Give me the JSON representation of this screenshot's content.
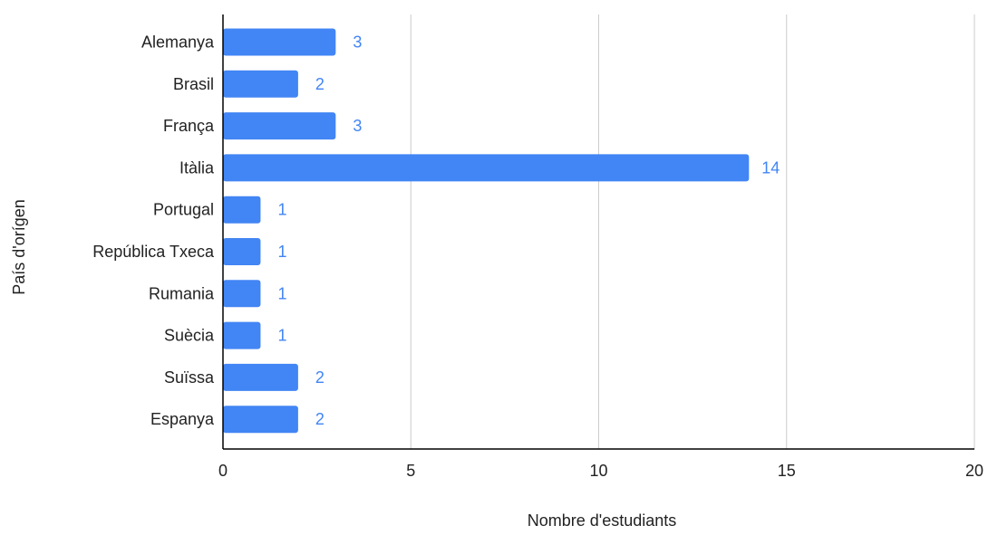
{
  "chart_data": {
    "type": "bar",
    "orientation": "horizontal",
    "categories": [
      "Alemanya",
      "Brasil",
      "França",
      "Itàlia",
      "Portugal",
      "República Txeca",
      "Rumania",
      "Suècia",
      "Suïssa",
      "Espanya"
    ],
    "series": [
      {
        "values": [
          3,
          2,
          3,
          14,
          1,
          1,
          1,
          1,
          2,
          2
        ]
      }
    ],
    "data_labels": [
      "3",
      "2",
      "3",
      "14",
      "1",
      "1",
      "1",
      "1",
      "2",
      "2"
    ],
    "xlabel": "Nombre d'estudiants",
    "ylabel": "País d'orígen",
    "xlim": [
      0,
      20
    ],
    "x_ticks": [
      "0",
      "5",
      "10",
      "15",
      "20"
    ],
    "grid": "vertical",
    "colors": {
      "bar": "#4285f4",
      "label": "#4285f4",
      "grid": "#cccccc",
      "axis": "#000000",
      "text": "#222222"
    }
  }
}
